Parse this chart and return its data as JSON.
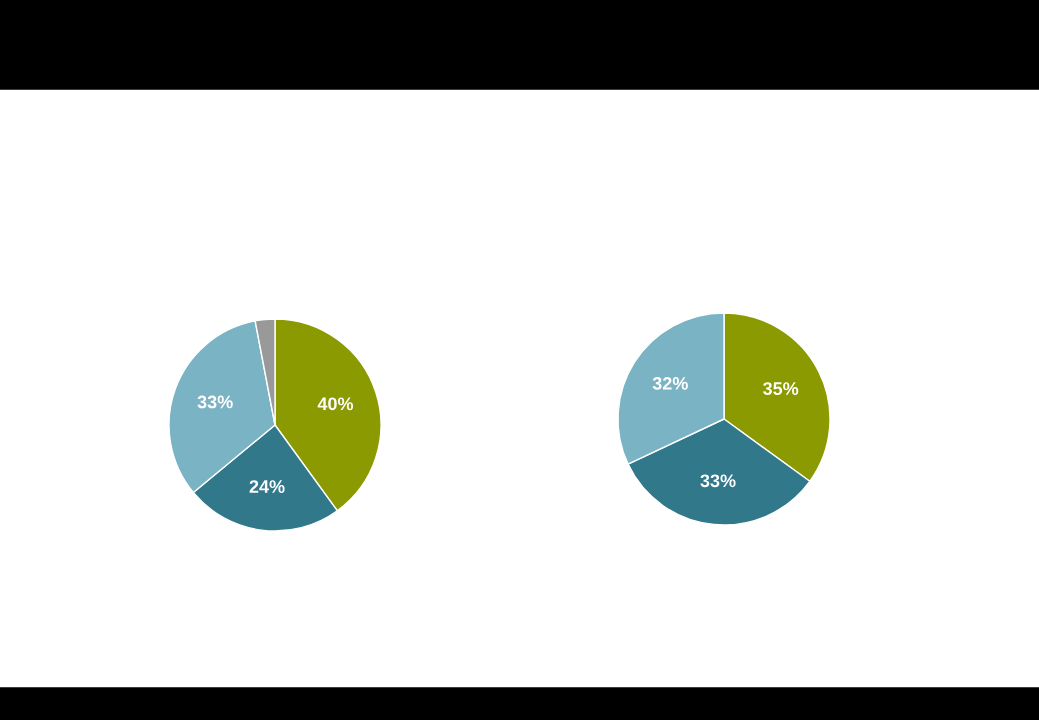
{
  "chart_data": [
    {
      "type": "pie",
      "categories": [
        null,
        null,
        null,
        null
      ],
      "values": [
        40,
        24,
        33,
        3
      ],
      "colors": [
        "#8a9a00",
        "#31788a",
        "#7ab3c4",
        "#999999"
      ],
      "value_labels": [
        "40%",
        "24%",
        "33%",
        null
      ]
    },
    {
      "type": "pie",
      "categories": [
        null,
        null,
        null
      ],
      "values": [
        35,
        33,
        32
      ],
      "colors": [
        "#8a9a00",
        "#31788a",
        "#7ab3c4"
      ],
      "value_labels": [
        "35%",
        "33%",
        "32%"
      ]
    }
  ]
}
